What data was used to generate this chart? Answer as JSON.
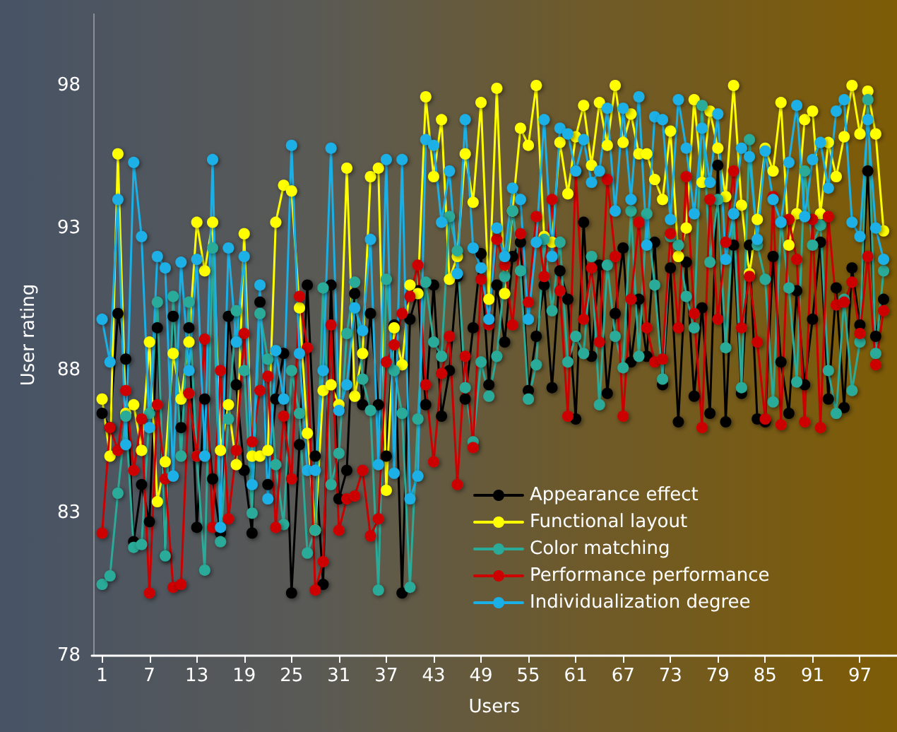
{
  "chart_data": {
    "type": "line",
    "xlabel": "Users",
    "ylabel": "User rating",
    "x": [
      1,
      2,
      3,
      4,
      5,
      6,
      7,
      8,
      9,
      10,
      11,
      12,
      13,
      14,
      15,
      16,
      17,
      18,
      19,
      20,
      21,
      22,
      23,
      24,
      25,
      26,
      27,
      28,
      29,
      30,
      31,
      32,
      33,
      34,
      35,
      36,
      37,
      38,
      39,
      40,
      41,
      42,
      43,
      44,
      45,
      46,
      47,
      48,
      49,
      50,
      51,
      52,
      53,
      54,
      55,
      56,
      57,
      58,
      59,
      60,
      61,
      62,
      63,
      64,
      65,
      66,
      67,
      68,
      69,
      70,
      71,
      72,
      73,
      74,
      75,
      76,
      77,
      78,
      79,
      80,
      81,
      82,
      83,
      84,
      85,
      86,
      87,
      88,
      89,
      90,
      91,
      92,
      93,
      94,
      95,
      96,
      97,
      98,
      99,
      100
    ],
    "xlim": [
      -0.3,
      101.7
    ],
    "xticks": [
      1,
      7,
      13,
      19,
      25,
      31,
      37,
      43,
      49,
      55,
      61,
      67,
      73,
      79,
      85,
      91,
      97
    ],
    "ylim": [
      78,
      100.5
    ],
    "yticks": [
      78,
      83,
      88,
      93,
      98
    ],
    "grid": false,
    "legend": "bottom right",
    "marker": "circle",
    "line_style": "solid",
    "series": [
      {
        "name": "Appearance effect",
        "color": "#000000",
        "values": [
          86.5,
          86.0,
          90.0,
          88.4,
          82.0,
          84.0,
          82.7,
          89.5,
          81.5,
          89.9,
          86.0,
          89.5,
          82.5,
          87.0,
          84.2,
          82.3,
          89.9,
          87.5,
          84.5,
          82.3,
          90.4,
          84.0,
          87.0,
          88.6,
          80.2,
          85.4,
          91.0,
          85.0,
          80.5,
          91.0,
          83.5,
          84.5,
          90.7,
          86.8,
          90.0,
          86.8,
          85.0,
          89.6,
          80.2,
          89.8,
          90.8,
          86.8,
          91.0,
          86.4,
          88.0,
          91.3,
          87.0,
          89.5,
          92.1,
          87.5,
          91.0,
          89.0,
          92.0,
          92.5,
          87.3,
          89.2,
          91.0,
          87.4,
          91.5,
          90.5,
          86.3,
          93.2,
          88.5,
          91.7,
          87.2,
          90.0,
          92.3,
          88.3,
          90.5,
          88.5,
          92.5,
          87.5,
          91.6,
          86.2,
          91.8,
          87.1,
          90.2,
          86.5,
          95.2,
          86.2,
          92.4,
          87.2,
          92.4,
          86.3,
          86.2,
          92.0,
          88.3,
          86.5,
          90.8,
          87.5,
          89.8,
          92.5,
          87.0,
          90.9,
          86.7,
          91.6,
          89.6,
          95.0,
          89.2,
          90.5
        ]
      },
      {
        "name": "Functional layout",
        "color": "#ffff00",
        "values": [
          87.0,
          85.0,
          95.6,
          86.5,
          86.8,
          85.2,
          89.0,
          83.4,
          84.8,
          88.6,
          87.0,
          89.0,
          93.2,
          91.5,
          93.2,
          85.2,
          86.8,
          84.7,
          92.8,
          85.0,
          85.0,
          85.2,
          93.2,
          94.5,
          94.3,
          90.2,
          85.8,
          82.4,
          87.3,
          87.5,
          86.8,
          95.1,
          87.1,
          88.6,
          94.8,
          95.1,
          83.8,
          89.5,
          88.2,
          91.0,
          90.7,
          97.6,
          94.8,
          96.8,
          91.2,
          92.0,
          95.6,
          93.9,
          97.4,
          90.5,
          97.9,
          90.7,
          93.6,
          96.5,
          95.9,
          98.0,
          92.7,
          92.5,
          96.0,
          94.2,
          96.2,
          97.3,
          95.2,
          97.4,
          95.9,
          98.0,
          96.0,
          97.0,
          95.6,
          95.6,
          94.7,
          94.0,
          96.4,
          92.0,
          93.0,
          97.5,
          94.6,
          97.1,
          95.8,
          94.1,
          98.0,
          93.8,
          91.4,
          93.3,
          95.8,
          95.0,
          97.4,
          92.4,
          93.5,
          96.8,
          97.1,
          93.5,
          96.0,
          94.8,
          96.2,
          98.0,
          96.3,
          97.8,
          96.3,
          92.9
        ]
      },
      {
        "name": "Color matching",
        "color": "#2aaa98",
        "values": [
          80.5,
          80.8,
          83.7,
          86.4,
          81.8,
          81.9,
          86.5,
          90.4,
          81.5,
          90.6,
          85.0,
          90.4,
          85.0,
          81.0,
          92.3,
          82.0,
          86.3,
          90.1,
          88.0,
          83.0,
          90.0,
          88.4,
          84.7,
          82.6,
          88.0,
          86.5,
          81.6,
          82.4,
          90.9,
          84.0,
          85.1,
          89.3,
          91.1,
          87.7,
          86.6,
          80.3,
          91.2,
          88.0,
          86.5,
          80.4,
          86.3,
          91.1,
          89.0,
          88.5,
          93.4,
          92.2,
          87.4,
          85.5,
          88.3,
          87.1,
          88.5,
          91.3,
          93.6,
          91.5,
          87.0,
          88.2,
          92.6,
          90.1,
          92.5,
          88.3,
          89.2,
          88.6,
          92.0,
          86.8,
          91.7,
          89.2,
          88.1,
          93.6,
          88.5,
          93.5,
          91.0,
          87.7,
          92.7,
          92.4,
          90.6,
          89.5,
          97.3,
          91.8,
          94.0,
          88.8,
          93.5,
          87.4,
          96.1,
          92.4,
          91.2,
          86.9,
          93.2,
          90.9,
          87.6,
          95.0,
          92.4,
          93.1,
          88.0,
          86.5,
          90.5,
          87.3,
          89.0,
          97.5,
          88.6,
          91.5
        ]
      },
      {
        "name": "Performance performance",
        "color": "#cc0000",
        "values": [
          82.3,
          86.0,
          85.2,
          87.3,
          84.5,
          86.3,
          80.2,
          86.8,
          84.2,
          80.4,
          80.5,
          87.2,
          85.0,
          89.1,
          82.5,
          88.0,
          82.8,
          85.2,
          89.3,
          85.5,
          87.3,
          87.8,
          82.5,
          86.4,
          84.2,
          90.6,
          88.8,
          80.3,
          81.3,
          89.6,
          82.4,
          83.5,
          83.6,
          84.5,
          82.2,
          82.8,
          88.3,
          88.9,
          90.0,
          90.6,
          91.7,
          87.5,
          84.8,
          87.9,
          89.2,
          84.0,
          88.5,
          85.3,
          91.2,
          89.6,
          92.6,
          91.7,
          89.6,
          92.8,
          90.4,
          93.4,
          91.3,
          94.0,
          90.8,
          86.4,
          95.0,
          89.8,
          91.6,
          89.0,
          94.7,
          92.0,
          86.4,
          90.5,
          93.2,
          89.5,
          88.3,
          88.4,
          92.8,
          89.5,
          94.8,
          90.0,
          86.0,
          94.0,
          89.8,
          92.5,
          95.0,
          89.5,
          91.3,
          89.0,
          86.3,
          94.1,
          86.1,
          93.3,
          91.9,
          86.2,
          93.3,
          86.0,
          93.4,
          90.3,
          90.4,
          91.1,
          89.3,
          92.0,
          88.2,
          90.1
        ]
      },
      {
        "name": "Individualization degree",
        "color": "#1ab0e6",
        "values": [
          89.8,
          88.3,
          94.0,
          85.4,
          95.3,
          92.7,
          86.0,
          92.0,
          91.6,
          84.3,
          91.8,
          88.0,
          91.9,
          85.0,
          95.4,
          82.5,
          92.3,
          89.0,
          92.0,
          84.0,
          91.0,
          83.5,
          88.7,
          87.0,
          95.9,
          88.6,
          84.5,
          84.5,
          88.0,
          95.8,
          86.6,
          87.5,
          90.2,
          89.4,
          92.6,
          84.7,
          95.4,
          84.4,
          95.4,
          83.5,
          84.3,
          96.1,
          95.9,
          93.2,
          95.0,
          91.4,
          96.8,
          92.3,
          91.6,
          89.8,
          93.0,
          92.0,
          94.4,
          94.0,
          89.8,
          92.5,
          96.8,
          92.0,
          96.5,
          96.3,
          95.0,
          96.1,
          94.6,
          95.0,
          97.2,
          93.6,
          97.2,
          94.0,
          97.6,
          92.4,
          96.9,
          96.8,
          93.3,
          97.5,
          95.8,
          93.5,
          96.5,
          94.6,
          97.0,
          91.9,
          93.5,
          95.8,
          95.5,
          92.6,
          95.7,
          94.0,
          93.2,
          95.3,
          97.3,
          93.4,
          95.4,
          96.0,
          94.4,
          97.1,
          97.5,
          93.2,
          92.7,
          96.8,
          93.0,
          91.9
        ]
      }
    ]
  }
}
